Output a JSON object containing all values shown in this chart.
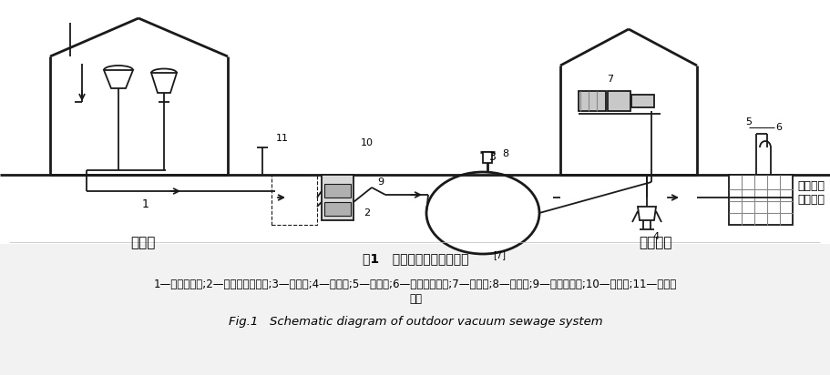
{
  "bg_color": "#f2f2f2",
  "diagram_bg": "#ffffff",
  "line_color": "#1a1a1a",
  "title_cn": "图1   室外真空排水系统示意",
  "title_ref": "[7]",
  "caption_cn": "1—重力排出管;2—真空支管或主管;3—真空罐;4—污水泵;5—透气管;6—除臭生物滤池;7—真空泵;8—检查孔;9—真空排出管;10—收集箱;11—污水检查井",
  "caption_en": "Fig.1   Schematic diagram of outdoor vacuum sewage system",
  "label_building": "建筑物",
  "label_station": "真空泵站",
  "label_discharge": "排至市政\n污水管道",
  "figsize": [
    9.12,
    4.12
  ],
  "dpi": 100
}
